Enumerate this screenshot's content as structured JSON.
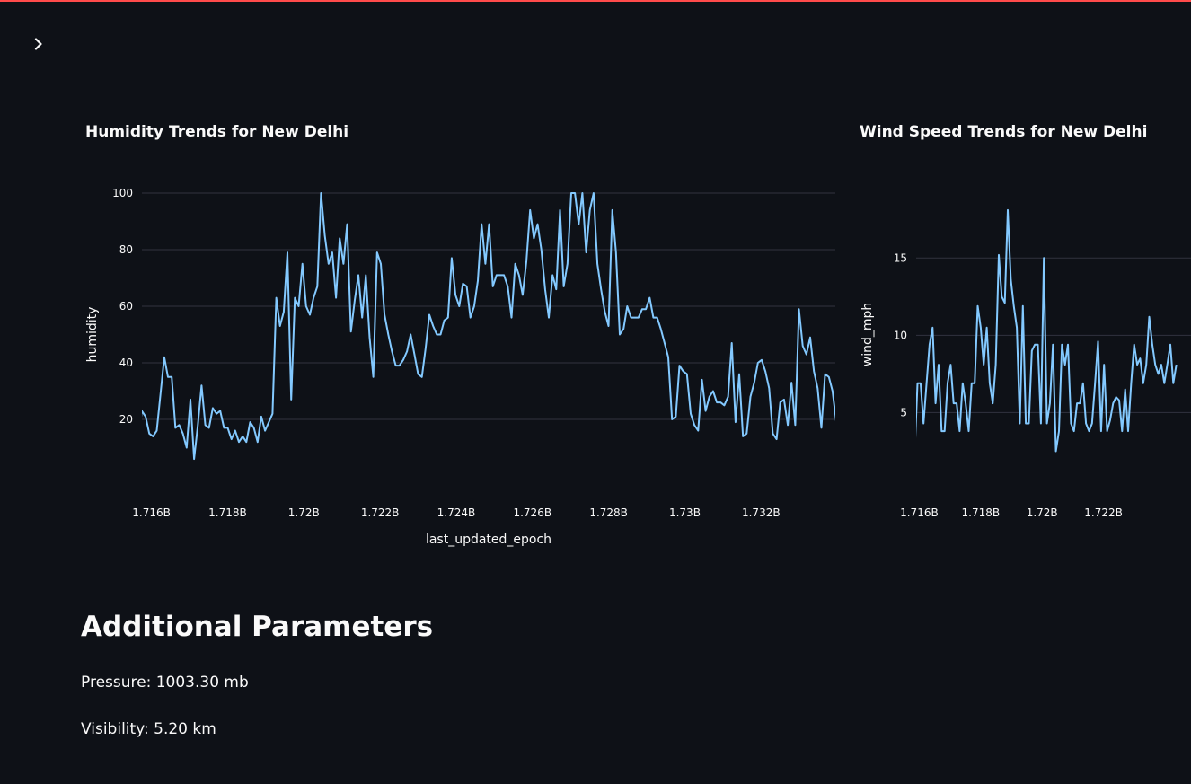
{
  "app": {
    "accent_color": "#ff4b4b",
    "background_color": "#0e1117",
    "line_color": "#83c9ff",
    "sidebar_toggle_icon": "chevron-right-icon"
  },
  "charts": {
    "humidity": {
      "title": "Humidity Trends for New Delhi"
    },
    "wind": {
      "title": "Wind Speed Trends for New Delhi"
    }
  },
  "chart_data": [
    {
      "type": "line",
      "title": "Humidity Trends for New Delhi",
      "xlabel": "last_updated_epoch",
      "ylabel": "humidity",
      "xlim": [
        1715750000,
        1733950000
      ],
      "ylim": [
        0,
        100
      ],
      "x_ticks": [
        1716000000,
        1718000000,
        1720000000,
        1722000000,
        1724000000,
        1726000000,
        1728000000,
        1730000000,
        1732000000
      ],
      "x_tick_labels": [
        "1.716B",
        "1.718B",
        "1.72B",
        "1.722B",
        "1.724B",
        "1.726B",
        "1.728B",
        "1.73B",
        "1.732B"
      ],
      "y_ticks": [
        20,
        40,
        60,
        80,
        100
      ],
      "y_tick_labels": [
        "20",
        "40",
        "60",
        "80",
        "100"
      ],
      "grid": true,
      "series": [
        {
          "x_start": 1715650000,
          "x_step": 98000,
          "values": [
            13,
            23,
            21,
            15,
            14,
            16,
            29,
            42,
            35,
            35,
            17,
            18,
            15,
            10,
            27,
            6,
            18,
            32,
            18,
            17,
            24,
            22,
            23,
            17,
            17,
            13,
            16,
            12,
            14,
            12,
            19,
            17,
            12,
            21,
            16,
            19,
            22,
            63,
            53,
            58,
            79,
            27,
            63,
            60,
            75,
            60,
            57,
            63,
            67,
            100,
            85,
            75,
            79,
            63,
            84,
            75,
            89,
            51,
            62,
            71,
            56,
            71,
            49,
            35,
            79,
            75,
            57,
            50,
            44,
            39,
            39,
            41,
            44,
            50,
            43,
            36,
            35,
            45,
            57,
            53,
            50,
            50,
            55,
            56,
            77,
            64,
            60,
            68,
            67,
            56,
            60,
            69,
            89,
            75,
            89,
            67,
            71,
            71,
            71,
            67,
            56,
            75,
            71,
            64,
            76,
            94,
            84,
            89,
            80,
            66,
            56,
            71,
            66,
            94,
            67,
            75,
            100,
            100,
            89,
            100,
            79,
            94,
            100,
            75,
            66,
            58,
            53,
            94,
            79,
            50,
            52,
            60,
            56,
            56,
            56,
            59,
            59,
            63,
            56,
            56,
            52,
            47,
            42,
            20,
            21,
            39,
            37,
            36,
            22,
            18,
            16,
            34,
            23,
            28,
            30,
            26,
            26,
            25,
            28,
            47,
            19,
            36,
            14,
            15,
            28,
            33,
            40,
            41,
            37,
            31,
            15,
            13,
            26,
            27,
            18,
            33,
            18,
            59,
            46,
            43,
            49,
            37,
            31,
            17,
            36,
            35,
            30,
            19,
            18,
            41,
            34,
            34,
            36,
            18,
            27,
            30,
            44,
            39,
            17,
            28,
            30,
            32,
            34,
            34
          ]
        }
      ]
    },
    {
      "type": "line",
      "title": "Wind Speed Trends for New Delhi",
      "xlabel": "",
      "ylabel": "wind_mph",
      "xlim": [
        1715900000,
        1724850000
      ],
      "ylim": [
        0.9,
        19.2
      ],
      "x_ticks": [
        1716000000,
        1718000000,
        1720000000,
        1722000000
      ],
      "x_tick_labels": [
        "1.716B",
        "1.718B",
        "1.72B",
        "1.722B"
      ],
      "y_ticks": [
        5,
        10,
        15
      ],
      "y_tick_labels": [
        "5",
        "10",
        "15"
      ],
      "grid": true,
      "series": [
        {
          "x_start": 1715650000,
          "x_step": 98000,
          "values": [
            3.5,
            6.9,
            2.2,
            6.9,
            6.9,
            4.3,
            6.9,
            9.4,
            10.5,
            5.6,
            8.1,
            3.8,
            3.8,
            6.9,
            8.1,
            5.6,
            5.6,
            3.8,
            6.9,
            5.6,
            3.8,
            6.9,
            6.9,
            11.9,
            10.5,
            8.1,
            10.5,
            6.9,
            5.6,
            8.1,
            15.2,
            12.5,
            12.1,
            18.1,
            13.6,
            11.9,
            10.5,
            4.3,
            11.9,
            4.3,
            4.3,
            9.0,
            9.4,
            9.4,
            4.3,
            15.0,
            4.3,
            5.6,
            9.4,
            2.5,
            3.8,
            9.4,
            8.1,
            9.4,
            4.3,
            3.8,
            5.6,
            5.6,
            6.9,
            4.3,
            3.8,
            4.3,
            6.9,
            9.6,
            3.8,
            8.1,
            3.8,
            4.5,
            5.6,
            6.0,
            5.8,
            3.8,
            6.5,
            3.8,
            6.9,
            9.4,
            8.1,
            8.5,
            6.9,
            8.1,
            11.2,
            9.4,
            8.1,
            7.5,
            8.1,
            6.9,
            8.1,
            9.4,
            6.9,
            8.1
          ]
        }
      ]
    }
  ],
  "additional": {
    "heading": "Additional Parameters",
    "pressure": "Pressure: 1003.30 mb",
    "visibility": "Visibility: 5.20 km"
  }
}
